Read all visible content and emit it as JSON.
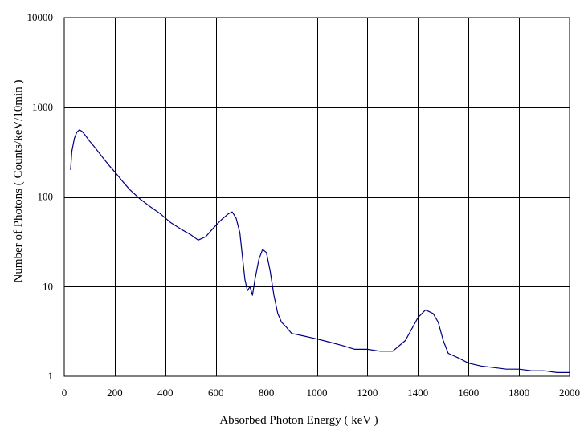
{
  "chart_data": {
    "type": "line",
    "title": "",
    "xlabel": "Absorbed Photon Energy  ( keV )",
    "ylabel": "Number  of Photons ( Counts/keV/10min  )",
    "xlim": [
      0,
      2000
    ],
    "ylim": [
      1,
      10000
    ],
    "y_scale": "log",
    "grid": true,
    "legend": "none",
    "x_ticks": [
      "0",
      "200",
      "400",
      "600",
      "800",
      "1000",
      "1200",
      "1400",
      "1600",
      "1800",
      "2000"
    ],
    "y_ticks": [
      "1",
      "10",
      "100",
      "1000",
      "10000"
    ],
    "colors": {
      "series": "#000080",
      "grid": "#000000",
      "background": "#ffffff"
    },
    "series": [
      {
        "x": [
          25,
          30,
          40,
          50,
          60,
          70,
          80,
          100,
          120,
          150,
          180,
          200,
          230,
          260,
          300,
          340,
          380,
          420,
          460,
          500,
          530,
          560,
          590,
          620,
          650,
          665,
          680,
          695,
          705,
          715,
          725,
          735,
          745,
          755,
          770,
          785,
          800,
          815,
          830,
          845,
          860,
          880,
          900,
          950,
          1000,
          1050,
          1100,
          1150,
          1200,
          1250,
          1300,
          1350,
          1400,
          1430,
          1460,
          1480,
          1500,
          1520,
          1560,
          1600,
          1650,
          1700,
          1750,
          1800,
          1850,
          1900,
          1950,
          2000
        ],
        "y": [
          200,
          320,
          450,
          530,
          560,
          540,
          500,
          420,
          360,
          280,
          220,
          190,
          150,
          120,
          95,
          78,
          65,
          52,
          44,
          38,
          33,
          36,
          45,
          55,
          65,
          68,
          58,
          40,
          22,
          12,
          9,
          10,
          8,
          12,
          20,
          26,
          24,
          15,
          8,
          5,
          4,
          3.5,
          3,
          2.8,
          2.6,
          2.4,
          2.2,
          2.0,
          2.0,
          1.9,
          1.9,
          2.5,
          4.5,
          5.5,
          5.0,
          4.0,
          2.5,
          1.8,
          1.6,
          1.4,
          1.3,
          1.25,
          1.2,
          1.2,
          1.15,
          1.15,
          1.1,
          1.1
        ]
      }
    ]
  }
}
